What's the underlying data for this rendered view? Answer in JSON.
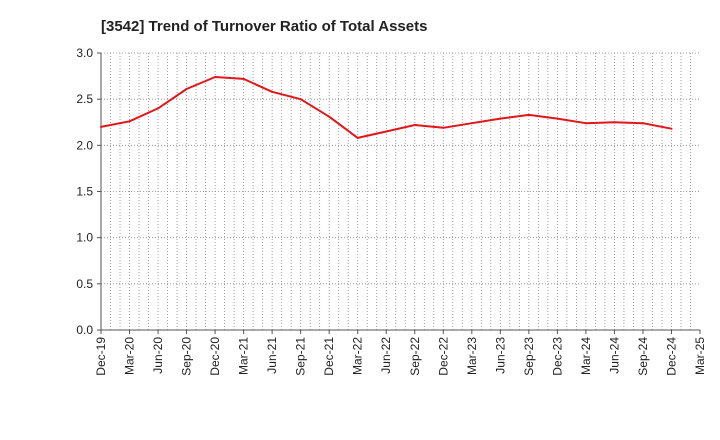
{
  "chart_data": {
    "type": "line",
    "title": "[3542]  Trend of Turnover Ratio of Total Assets",
    "xlabel": "",
    "ylabel": "",
    "categories": [
      "Dec-19",
      "Mar-20",
      "Jun-20",
      "Sep-20",
      "Dec-20",
      "Mar-21",
      "Jun-21",
      "Sep-21",
      "Dec-21",
      "Mar-22",
      "Jun-22",
      "Sep-22",
      "Dec-22",
      "Mar-23",
      "Jun-23",
      "Sep-23",
      "Dec-23",
      "Mar-24",
      "Jun-24",
      "Sep-24",
      "Dec-24",
      "Mar-25"
    ],
    "series": [
      {
        "values": [
          2.2,
          2.26,
          2.4,
          2.61,
          2.74,
          2.72,
          2.58,
          2.5,
          2.31,
          2.08,
          2.15,
          2.22,
          2.19,
          2.24,
          2.29,
          2.33,
          2.29,
          2.24,
          2.25,
          2.24,
          2.18,
          null
        ],
        "color": "#e0161b"
      }
    ],
    "ylim": [
      0,
      3.0
    ],
    "yticks": [
      0.0,
      0.5,
      1.0,
      1.5,
      2.0,
      2.5,
      3.0
    ],
    "ytick_labels": [
      "0.0",
      "0.5",
      "1.0",
      "1.5",
      "2.0",
      "2.5",
      "3.0"
    ],
    "grid": true,
    "grid_style": "dotted",
    "legend": "none"
  }
}
